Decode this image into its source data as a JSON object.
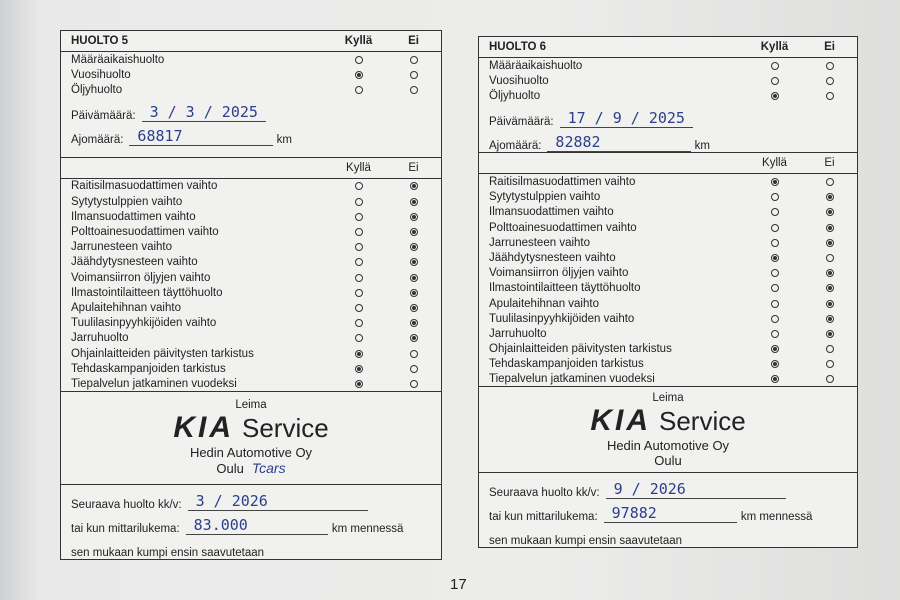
{
  "forms": [
    {
      "title": "HUOLTO 5",
      "yes": "Kyllä",
      "no": "Ei",
      "service_types": [
        {
          "label": "Määräaikaishuolto",
          "checked": null
        },
        {
          "label": "Vuosihuolto",
          "checked": 0
        },
        {
          "label": "Öljyhuolto",
          "checked": null
        }
      ],
      "date_label": "Päivämäärä:",
      "date_value": "3 / 3 / 2025",
      "mileage_label": "Ajomäärä:",
      "mileage_value": "68817",
      "km": "km",
      "items": [
        {
          "label": "Raitisilmasuodattimen vaihto",
          "checked": 1
        },
        {
          "label": "Sytytystulppien vaihto",
          "checked": 1
        },
        {
          "label": "Ilmansuodattimen vaihto",
          "checked": 1
        },
        {
          "label": "Polttoainesuodattimen vaihto",
          "checked": 1
        },
        {
          "label": "Jarrunesteen vaihto",
          "checked": 1
        },
        {
          "label": "Jäähdytysnesteen vaihto",
          "checked": 1
        },
        {
          "label": "Voimansiirron öljyjen vaihto",
          "checked": 1
        },
        {
          "label": "Ilmastointilaitteen täyttöhuolto",
          "checked": 1
        },
        {
          "label": "Apulaitehihnan vaihto",
          "checked": 1
        },
        {
          "label": "Tuulilasinpyyhkijöiden vaihto",
          "checked": 1
        },
        {
          "label": "Jarruhuolto",
          "checked": 1
        },
        {
          "label": "Ohjainlaitteiden päivitysten tarkistus",
          "checked": 0
        },
        {
          "label": "Tehdaskampanjoiden tarkistus",
          "checked": 0
        },
        {
          "label": "Tiepalvelun jatkaminen vuodeksi",
          "checked": 0
        }
      ],
      "stamp": {
        "leima": "Leima",
        "brand": "KIA",
        "service": "Service",
        "company": "Hedin Automotive Oy",
        "city": "Oulu",
        "signature": "Tcars"
      },
      "next_label": "Seuraava huolto kk/v:",
      "next_value": "3 / 2026",
      "next_mileage_label": "tai kun mittarilukema:",
      "next_mileage_value": "83.000",
      "next_km": "km mennessä",
      "note": "sen mukaan kumpi ensin saavutetaan"
    },
    {
      "title": "HUOLTO 6",
      "yes": "Kyllä",
      "no": "Ei",
      "service_types": [
        {
          "label": "Määräaikaishuolto",
          "checked": null
        },
        {
          "label": "Vuosihuolto",
          "checked": null
        },
        {
          "label": "Öljyhuolto",
          "checked": 0
        }
      ],
      "date_label": "Päivämäärä:",
      "date_value": "17 / 9 / 2025",
      "mileage_label": "Ajomäärä:",
      "mileage_value": "82882",
      "km": "km",
      "items": [
        {
          "label": "Raitisilmasuodattimen vaihto",
          "checked": 0
        },
        {
          "label": "Sytytystulppien vaihto",
          "checked": 1
        },
        {
          "label": "Ilmansuodattimen vaihto",
          "checked": 1
        },
        {
          "label": "Polttoainesuodattimen vaihto",
          "checked": 1
        },
        {
          "label": "Jarrunesteen vaihto",
          "checked": 1
        },
        {
          "label": "Jäähdytysnesteen vaihto",
          "checked": 0
        },
        {
          "label": "Voimansiirron öljyjen vaihto",
          "checked": 1
        },
        {
          "label": "Ilmastointilaitteen täyttöhuolto",
          "checked": 1
        },
        {
          "label": "Apulaitehihnan vaihto",
          "checked": 1
        },
        {
          "label": "Tuulilasinpyyhkijöiden vaihto",
          "checked": 1
        },
        {
          "label": "Jarruhuolto",
          "checked": 1
        },
        {
          "label": "Ohjainlaitteiden päivitysten tarkistus",
          "checked": 0
        },
        {
          "label": "Tehdaskampanjoiden tarkistus",
          "checked": 0
        },
        {
          "label": "Tiepalvelun jatkaminen vuodeksi",
          "checked": 0
        }
      ],
      "stamp": {
        "leima": "Leima",
        "brand": "KIA",
        "service": "Service",
        "company": "Hedin Automotive Oy",
        "city": "Oulu",
        "signature": null
      },
      "next_label": "Seuraava huolto kk/v:",
      "next_value": "9 / 2026",
      "next_mileage_label": "tai kun mittarilukema:",
      "next_mileage_value": "97882",
      "next_km": "km mennessä",
      "note": "sen mukaan kumpi ensin saavutetaan"
    }
  ],
  "page_number": "17"
}
